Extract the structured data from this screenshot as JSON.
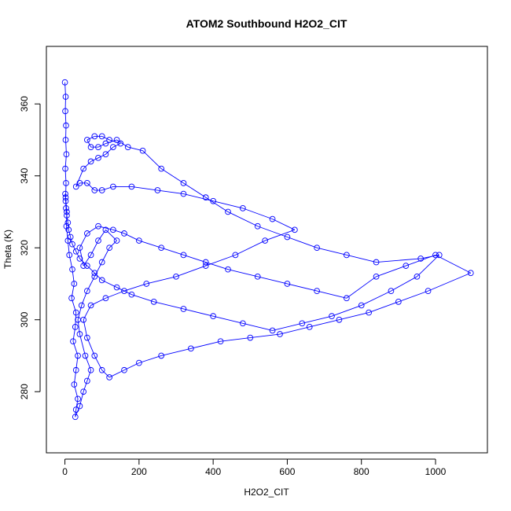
{
  "chart_data": {
    "type": "scatter",
    "title": "ATOM2 Southbound H2O2_CIT",
    "xlabel": "H2O2_CIT",
    "ylabel": "Theta (K)",
    "xlim": [
      -50,
      1140
    ],
    "ylim": [
      263,
      376
    ],
    "x_ticks": [
      0,
      200,
      400,
      600,
      800,
      1000
    ],
    "y_ticks": [
      280,
      300,
      320,
      340,
      360
    ],
    "x_tick_labels": [
      "0",
      "200",
      "400",
      "600",
      "800",
      "1000"
    ],
    "y_tick_labels": [
      "280",
      "300",
      "320",
      "340",
      "360"
    ],
    "grid": false,
    "legend": "none",
    "marker": "open-circle",
    "connect_points": true,
    "series_color": "#0000ff",
    "series": [
      {
        "points": [
          [
            0,
            366
          ],
          [
            2,
            362
          ],
          [
            1,
            358
          ],
          [
            3,
            354
          ],
          [
            2,
            350
          ],
          [
            4,
            346
          ],
          [
            1,
            342
          ],
          [
            3,
            338
          ],
          [
            2,
            334
          ],
          [
            5,
            330
          ],
          [
            4,
            326
          ],
          [
            8,
            322
          ],
          [
            12,
            318
          ],
          [
            20,
            314
          ],
          [
            25,
            310
          ],
          [
            18,
            306
          ],
          [
            30,
            302
          ],
          [
            28,
            298
          ],
          [
            22,
            294
          ],
          [
            35,
            290
          ],
          [
            30,
            286
          ],
          [
            25,
            282
          ],
          [
            35,
            278
          ],
          [
            30,
            275
          ],
          [
            28,
            273
          ],
          [
            40,
            276
          ],
          [
            50,
            280
          ],
          [
            60,
            283
          ],
          [
            70,
            286
          ],
          [
            55,
            290
          ],
          [
            40,
            296
          ],
          [
            35,
            300
          ],
          [
            45,
            304
          ],
          [
            60,
            308
          ],
          [
            80,
            312
          ],
          [
            100,
            316
          ],
          [
            120,
            320
          ],
          [
            140,
            322
          ],
          [
            110,
            325
          ],
          [
            90,
            322
          ],
          [
            70,
            318
          ],
          [
            50,
            315
          ],
          [
            40,
            320
          ],
          [
            60,
            324
          ],
          [
            90,
            326
          ],
          [
            130,
            325
          ],
          [
            160,
            324
          ],
          [
            200,
            322
          ],
          [
            260,
            320
          ],
          [
            320,
            318
          ],
          [
            380,
            316
          ],
          [
            440,
            314
          ],
          [
            520,
            312
          ],
          [
            600,
            310
          ],
          [
            680,
            308
          ],
          [
            760,
            306
          ],
          [
            840,
            312
          ],
          [
            920,
            315
          ],
          [
            1000,
            318
          ],
          [
            1095,
            313
          ],
          [
            980,
            308
          ],
          [
            900,
            305
          ],
          [
            820,
            302
          ],
          [
            740,
            300
          ],
          [
            660,
            298
          ],
          [
            580,
            296
          ],
          [
            500,
            295
          ],
          [
            420,
            294
          ],
          [
            340,
            292
          ],
          [
            260,
            290
          ],
          [
            200,
            288
          ],
          [
            160,
            286
          ],
          [
            120,
            284
          ],
          [
            100,
            286
          ],
          [
            80,
            290
          ],
          [
            60,
            295
          ],
          [
            50,
            300
          ],
          [
            70,
            304
          ],
          [
            110,
            306
          ],
          [
            160,
            308
          ],
          [
            220,
            310
          ],
          [
            300,
            312
          ],
          [
            380,
            315
          ],
          [
            460,
            318
          ],
          [
            540,
            322
          ],
          [
            620,
            325
          ],
          [
            560,
            328
          ],
          [
            480,
            331
          ],
          [
            400,
            333
          ],
          [
            320,
            335
          ],
          [
            250,
            336
          ],
          [
            180,
            337
          ],
          [
            130,
            337
          ],
          [
            100,
            336
          ],
          [
            80,
            336
          ],
          [
            60,
            338
          ],
          [
            40,
            338
          ],
          [
            30,
            337
          ],
          [
            50,
            342
          ],
          [
            70,
            344
          ],
          [
            90,
            345
          ],
          [
            110,
            346
          ],
          [
            130,
            348
          ],
          [
            150,
            349
          ],
          [
            120,
            350
          ],
          [
            100,
            351
          ],
          [
            80,
            351
          ],
          [
            60,
            350
          ],
          [
            70,
            348
          ],
          [
            90,
            348
          ],
          [
            110,
            349
          ],
          [
            140,
            350
          ],
          [
            170,
            348
          ],
          [
            210,
            347
          ],
          [
            260,
            342
          ],
          [
            320,
            338
          ],
          [
            380,
            334
          ],
          [
            440,
            330
          ],
          [
            520,
            326
          ],
          [
            600,
            323
          ],
          [
            680,
            320
          ],
          [
            760,
            318
          ],
          [
            840,
            316
          ],
          [
            960,
            317
          ],
          [
            1010,
            318
          ],
          [
            950,
            312
          ],
          [
            880,
            308
          ],
          [
            800,
            304
          ],
          [
            720,
            301
          ],
          [
            640,
            299
          ],
          [
            560,
            297
          ],
          [
            480,
            299
          ],
          [
            400,
            301
          ],
          [
            320,
            303
          ],
          [
            240,
            305
          ],
          [
            180,
            307
          ],
          [
            140,
            309
          ],
          [
            100,
            311
          ],
          [
            80,
            313
          ],
          [
            60,
            315
          ],
          [
            40,
            317
          ],
          [
            30,
            319
          ],
          [
            20,
            321
          ],
          [
            15,
            323
          ],
          [
            10,
            325
          ],
          [
            8,
            327
          ],
          [
            5,
            329
          ],
          [
            3,
            331
          ],
          [
            2,
            333
          ],
          [
            1,
            335
          ]
        ]
      }
    ]
  }
}
